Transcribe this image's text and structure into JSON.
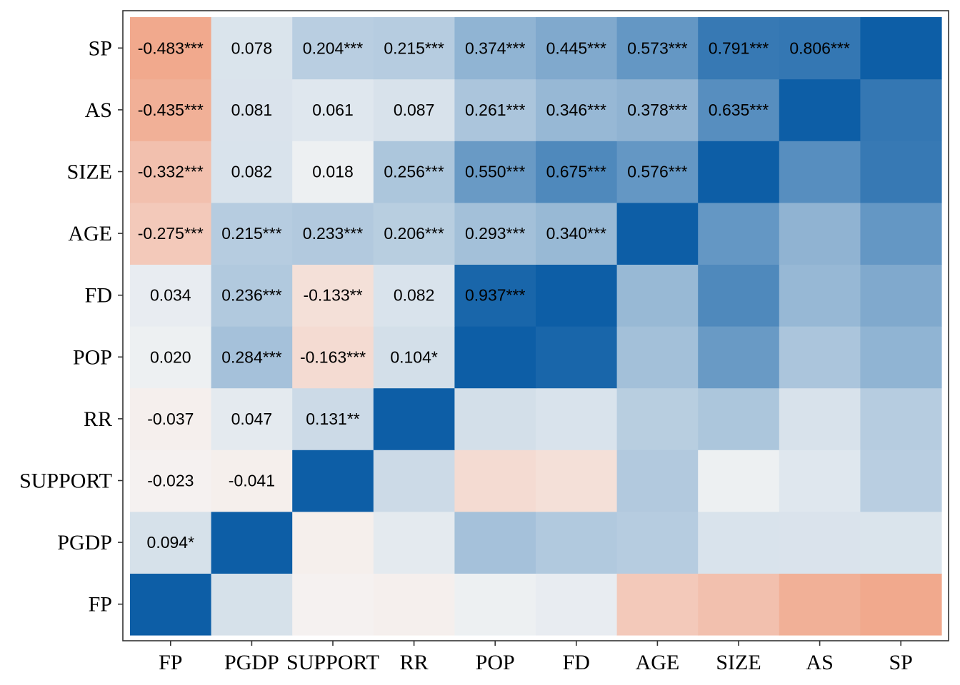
{
  "chart_data": {
    "type": "heatmap",
    "title": "",
    "xlabel": "",
    "ylabel": "",
    "variables": [
      "FP",
      "PGDP",
      "SUPPORT",
      "RR",
      "POP",
      "FD",
      "AGE",
      "SIZE",
      "AS",
      "SP"
    ],
    "x_tick_labels": [
      "FP",
      "PGDP",
      "SUPPORT",
      "RR",
      "POP",
      "FD",
      "AGE",
      "SIZE",
      "AS",
      "SP"
    ],
    "y_tick_labels_bottom_to_top": [
      "FP",
      "PGDP",
      "SUPPORT",
      "RR",
      "POP",
      "FD",
      "AGE",
      "SIZE",
      "AS",
      "SP"
    ],
    "correlation_matrix": [
      [
        1.0,
        0.094,
        -0.023,
        -0.037,
        0.02,
        0.034,
        -0.275,
        -0.332,
        -0.435,
        -0.483
      ],
      [
        0.094,
        1.0,
        -0.041,
        0.047,
        0.284,
        0.236,
        0.215,
        0.082,
        0.081,
        0.078
      ],
      [
        -0.023,
        -0.041,
        1.0,
        0.131,
        -0.163,
        -0.133,
        0.233,
        0.018,
        0.061,
        0.204
      ],
      [
        -0.037,
        0.047,
        0.131,
        1.0,
        0.104,
        0.082,
        0.206,
        0.256,
        0.087,
        0.215
      ],
      [
        0.02,
        0.284,
        -0.163,
        0.104,
        1.0,
        0.937,
        0.293,
        0.55,
        0.261,
        0.374
      ],
      [
        0.034,
        0.236,
        -0.133,
        0.082,
        0.937,
        1.0,
        0.34,
        0.675,
        0.346,
        0.445
      ],
      [
        -0.275,
        0.215,
        0.233,
        0.206,
        0.293,
        0.34,
        1.0,
        0.576,
        0.378,
        0.573
      ],
      [
        -0.332,
        0.082,
        0.018,
        0.256,
        0.55,
        0.675,
        0.576,
        1.0,
        0.635,
        0.791
      ],
      [
        -0.435,
        0.081,
        0.061,
        0.087,
        0.261,
        0.346,
        0.378,
        0.635,
        1.0,
        0.806
      ],
      [
        -0.483,
        0.078,
        0.204,
        0.215,
        0.374,
        0.445,
        0.573,
        0.791,
        0.806,
        1.0
      ]
    ],
    "cell_labels": [
      {
        "row": "PGDP",
        "col": "FP",
        "text": "0.094*"
      },
      {
        "row": "SUPPORT",
        "col": "FP",
        "text": "-0.023"
      },
      {
        "row": "SUPPORT",
        "col": "PGDP",
        "text": "-0.041"
      },
      {
        "row": "RR",
        "col": "FP",
        "text": "-0.037"
      },
      {
        "row": "RR",
        "col": "PGDP",
        "text": "0.047"
      },
      {
        "row": "RR",
        "col": "SUPPORT",
        "text": "0.131**"
      },
      {
        "row": "POP",
        "col": "FP",
        "text": "0.020"
      },
      {
        "row": "POP",
        "col": "PGDP",
        "text": "0.284***"
      },
      {
        "row": "POP",
        "col": "SUPPORT",
        "text": "-0.163***"
      },
      {
        "row": "POP",
        "col": "RR",
        "text": "0.104*"
      },
      {
        "row": "FD",
        "col": "FP",
        "text": "0.034"
      },
      {
        "row": "FD",
        "col": "PGDP",
        "text": "0.236***"
      },
      {
        "row": "FD",
        "col": "SUPPORT",
        "text": "-0.133**"
      },
      {
        "row": "FD",
        "col": "RR",
        "text": "0.082"
      },
      {
        "row": "FD",
        "col": "POP",
        "text": "0.937***"
      },
      {
        "row": "AGE",
        "col": "FP",
        "text": "-0.275***"
      },
      {
        "row": "AGE",
        "col": "PGDP",
        "text": "0.215***"
      },
      {
        "row": "AGE",
        "col": "SUPPORT",
        "text": "0.233***"
      },
      {
        "row": "AGE",
        "col": "RR",
        "text": "0.206***"
      },
      {
        "row": "AGE",
        "col": "POP",
        "text": "0.293***"
      },
      {
        "row": "AGE",
        "col": "FD",
        "text": "0.340***"
      },
      {
        "row": "SIZE",
        "col": "FP",
        "text": "-0.332***"
      },
      {
        "row": "SIZE",
        "col": "PGDP",
        "text": "0.082"
      },
      {
        "row": "SIZE",
        "col": "SUPPORT",
        "text": "0.018"
      },
      {
        "row": "SIZE",
        "col": "RR",
        "text": "0.256***"
      },
      {
        "row": "SIZE",
        "col": "POP",
        "text": "0.550***"
      },
      {
        "row": "SIZE",
        "col": "FD",
        "text": "0.675***"
      },
      {
        "row": "SIZE",
        "col": "AGE",
        "text": "0.576***"
      },
      {
        "row": "AS",
        "col": "FP",
        "text": "-0.435***"
      },
      {
        "row": "AS",
        "col": "PGDP",
        "text": "0.081"
      },
      {
        "row": "AS",
        "col": "SUPPORT",
        "text": "0.061"
      },
      {
        "row": "AS",
        "col": "RR",
        "text": "0.087"
      },
      {
        "row": "AS",
        "col": "POP",
        "text": "0.261***"
      },
      {
        "row": "AS",
        "col": "FD",
        "text": "0.346***"
      },
      {
        "row": "AS",
        "col": "AGE",
        "text": "0.378***"
      },
      {
        "row": "AS",
        "col": "SIZE",
        "text": "0.635***"
      },
      {
        "row": "SP",
        "col": "FP",
        "text": "-0.483***"
      },
      {
        "row": "SP",
        "col": "PGDP",
        "text": "0.078"
      },
      {
        "row": "SP",
        "col": "SUPPORT",
        "text": "0.204***"
      },
      {
        "row": "SP",
        "col": "RR",
        "text": "0.215***"
      },
      {
        "row": "SP",
        "col": "POP",
        "text": "0.374***"
      },
      {
        "row": "SP",
        "col": "FD",
        "text": "0.445***"
      },
      {
        "row": "SP",
        "col": "AGE",
        "text": "0.573***"
      },
      {
        "row": "SP",
        "col": "SIZE",
        "text": "0.791***"
      },
      {
        "row": "SP",
        "col": "AS",
        "text": "0.806***"
      }
    ],
    "color_scale": {
      "negative": "#f09674",
      "neutral": "#f5f5f5",
      "positive": "#0d5ea6",
      "domain": [
        -0.6,
        0,
        1
      ]
    },
    "grid": false,
    "legend": "none"
  }
}
